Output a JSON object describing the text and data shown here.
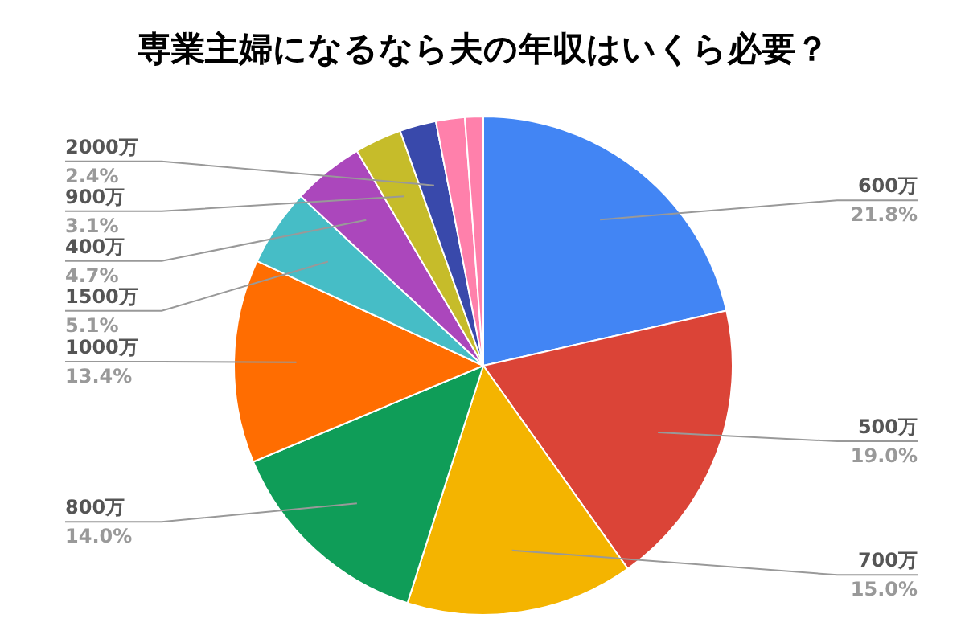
{
  "chart_data": {
    "type": "pie",
    "title": "専業主婦になるなら夫の年収はいくら必要？",
    "categories": [
      "600万",
      "500万",
      "700万",
      "800万",
      "1000万",
      "1500万",
      "400万",
      "900万",
      "2000万",
      null,
      null
    ],
    "values": [
      21.8,
      19.0,
      15.0,
      14.0,
      13.4,
      5.1,
      4.7,
      3.1,
      2.4,
      1.9,
      1.2
    ],
    "value_labels": [
      "21.8%",
      "19.0%",
      "15.0%",
      "14.0%",
      "13.4%",
      "5.1%",
      "4.7%",
      "3.1%",
      "2.4%",
      null,
      null
    ],
    "colors": [
      "#4285f4",
      "#db4437",
      "#f4b400",
      "#0f9d58",
      "#ff6d01",
      "#46bdc6",
      "#ab47bc",
      "#c6bc2a",
      "#3949ab",
      "#ff80ab",
      "#ff80ab"
    ]
  }
}
